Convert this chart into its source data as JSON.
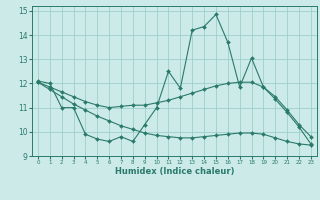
{
  "xlabel": "Humidex (Indice chaleur)",
  "xlim": [
    -0.5,
    23.5
  ],
  "ylim": [
    9,
    15.2
  ],
  "yticks": [
    9,
    10,
    11,
    12,
    13,
    14,
    15
  ],
  "xticks": [
    0,
    1,
    2,
    3,
    4,
    5,
    6,
    7,
    8,
    9,
    10,
    11,
    12,
    13,
    14,
    15,
    16,
    17,
    18,
    19,
    20,
    21,
    22,
    23
  ],
  "background_color": "#cceae7",
  "grid_color": "#9ecfca",
  "line_color": "#2a7a6a",
  "series1_x": [
    0,
    1,
    2,
    3,
    4,
    5,
    6,
    7,
    8,
    9,
    10,
    11,
    12,
    13,
    14,
    15,
    16,
    17,
    18,
    19,
    20,
    21,
    22,
    23
  ],
  "series1_y": [
    12.1,
    12.0,
    11.0,
    11.0,
    9.9,
    9.7,
    9.6,
    9.8,
    9.6,
    10.3,
    11.0,
    12.5,
    11.8,
    14.2,
    14.35,
    14.85,
    13.7,
    11.85,
    13.05,
    11.85,
    11.35,
    10.8,
    10.2,
    9.5
  ],
  "series2_x": [
    0,
    1,
    2,
    3,
    4,
    5,
    6,
    7,
    8,
    9,
    10,
    11,
    12,
    13,
    14,
    15,
    16,
    17,
    18,
    19,
    20,
    21,
    22,
    23
  ],
  "series2_y": [
    12.05,
    11.85,
    11.65,
    11.45,
    11.25,
    11.1,
    11.0,
    11.05,
    11.1,
    11.1,
    11.2,
    11.3,
    11.45,
    11.6,
    11.75,
    11.9,
    12.0,
    12.05,
    12.05,
    11.85,
    11.45,
    10.9,
    10.3,
    9.8
  ],
  "series3_x": [
    0,
    1,
    2,
    3,
    4,
    5,
    6,
    7,
    8,
    9,
    10,
    11,
    12,
    13,
    14,
    15,
    16,
    17,
    18,
    19,
    20,
    21,
    22,
    23
  ],
  "series3_y": [
    12.05,
    11.75,
    11.45,
    11.15,
    10.9,
    10.65,
    10.45,
    10.25,
    10.1,
    9.95,
    9.85,
    9.8,
    9.75,
    9.75,
    9.8,
    9.85,
    9.9,
    9.95,
    9.95,
    9.9,
    9.75,
    9.6,
    9.5,
    9.45
  ]
}
